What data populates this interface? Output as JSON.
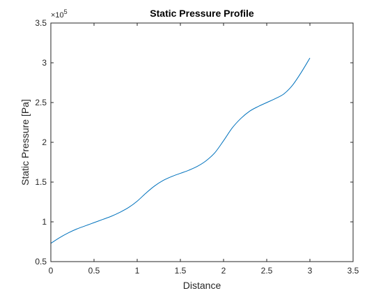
{
  "chart_data": {
    "type": "line",
    "title": "Static Pressure Profile",
    "xlabel": "Distance",
    "ylabel": "Static Pressure [Pa]",
    "y_multiplier_label": "×10",
    "y_multiplier_exponent": "5",
    "xlim": [
      0,
      3.5
    ],
    "ylim": [
      0.5,
      3.5
    ],
    "y_scale_factor": 100000,
    "xticks": [
      0,
      0.5,
      1,
      1.5,
      2,
      2.5,
      3,
      3.5
    ],
    "xtick_labels": [
      "0",
      "0.5",
      "1",
      "1.5",
      "2",
      "2.5",
      "3",
      "3.5"
    ],
    "yticks": [
      0.5,
      1,
      1.5,
      2,
      2.5,
      3,
      3.5
    ],
    "ytick_labels": [
      "0.5",
      "1",
      "1.5",
      "2",
      "2.5",
      "3",
      "3.5"
    ],
    "grid": false,
    "series": [
      {
        "color": "#0072BD",
        "x": [
          0,
          0.1,
          0.2,
          0.3,
          0.4,
          0.5,
          0.6,
          0.7,
          0.8,
          0.9,
          1.0,
          1.1,
          1.2,
          1.3,
          1.4,
          1.5,
          1.6,
          1.7,
          1.8,
          1.9,
          2.0,
          2.1,
          2.2,
          2.3,
          2.4,
          2.5,
          2.6,
          2.7,
          2.8,
          2.9,
          3.0
        ],
        "y": [
          0.73,
          0.8,
          0.86,
          0.91,
          0.95,
          0.99,
          1.03,
          1.07,
          1.12,
          1.18,
          1.26,
          1.36,
          1.45,
          1.52,
          1.57,
          1.61,
          1.65,
          1.7,
          1.77,
          1.87,
          2.02,
          2.18,
          2.3,
          2.39,
          2.45,
          2.5,
          2.55,
          2.61,
          2.72,
          2.88,
          3.06
        ]
      }
    ]
  }
}
